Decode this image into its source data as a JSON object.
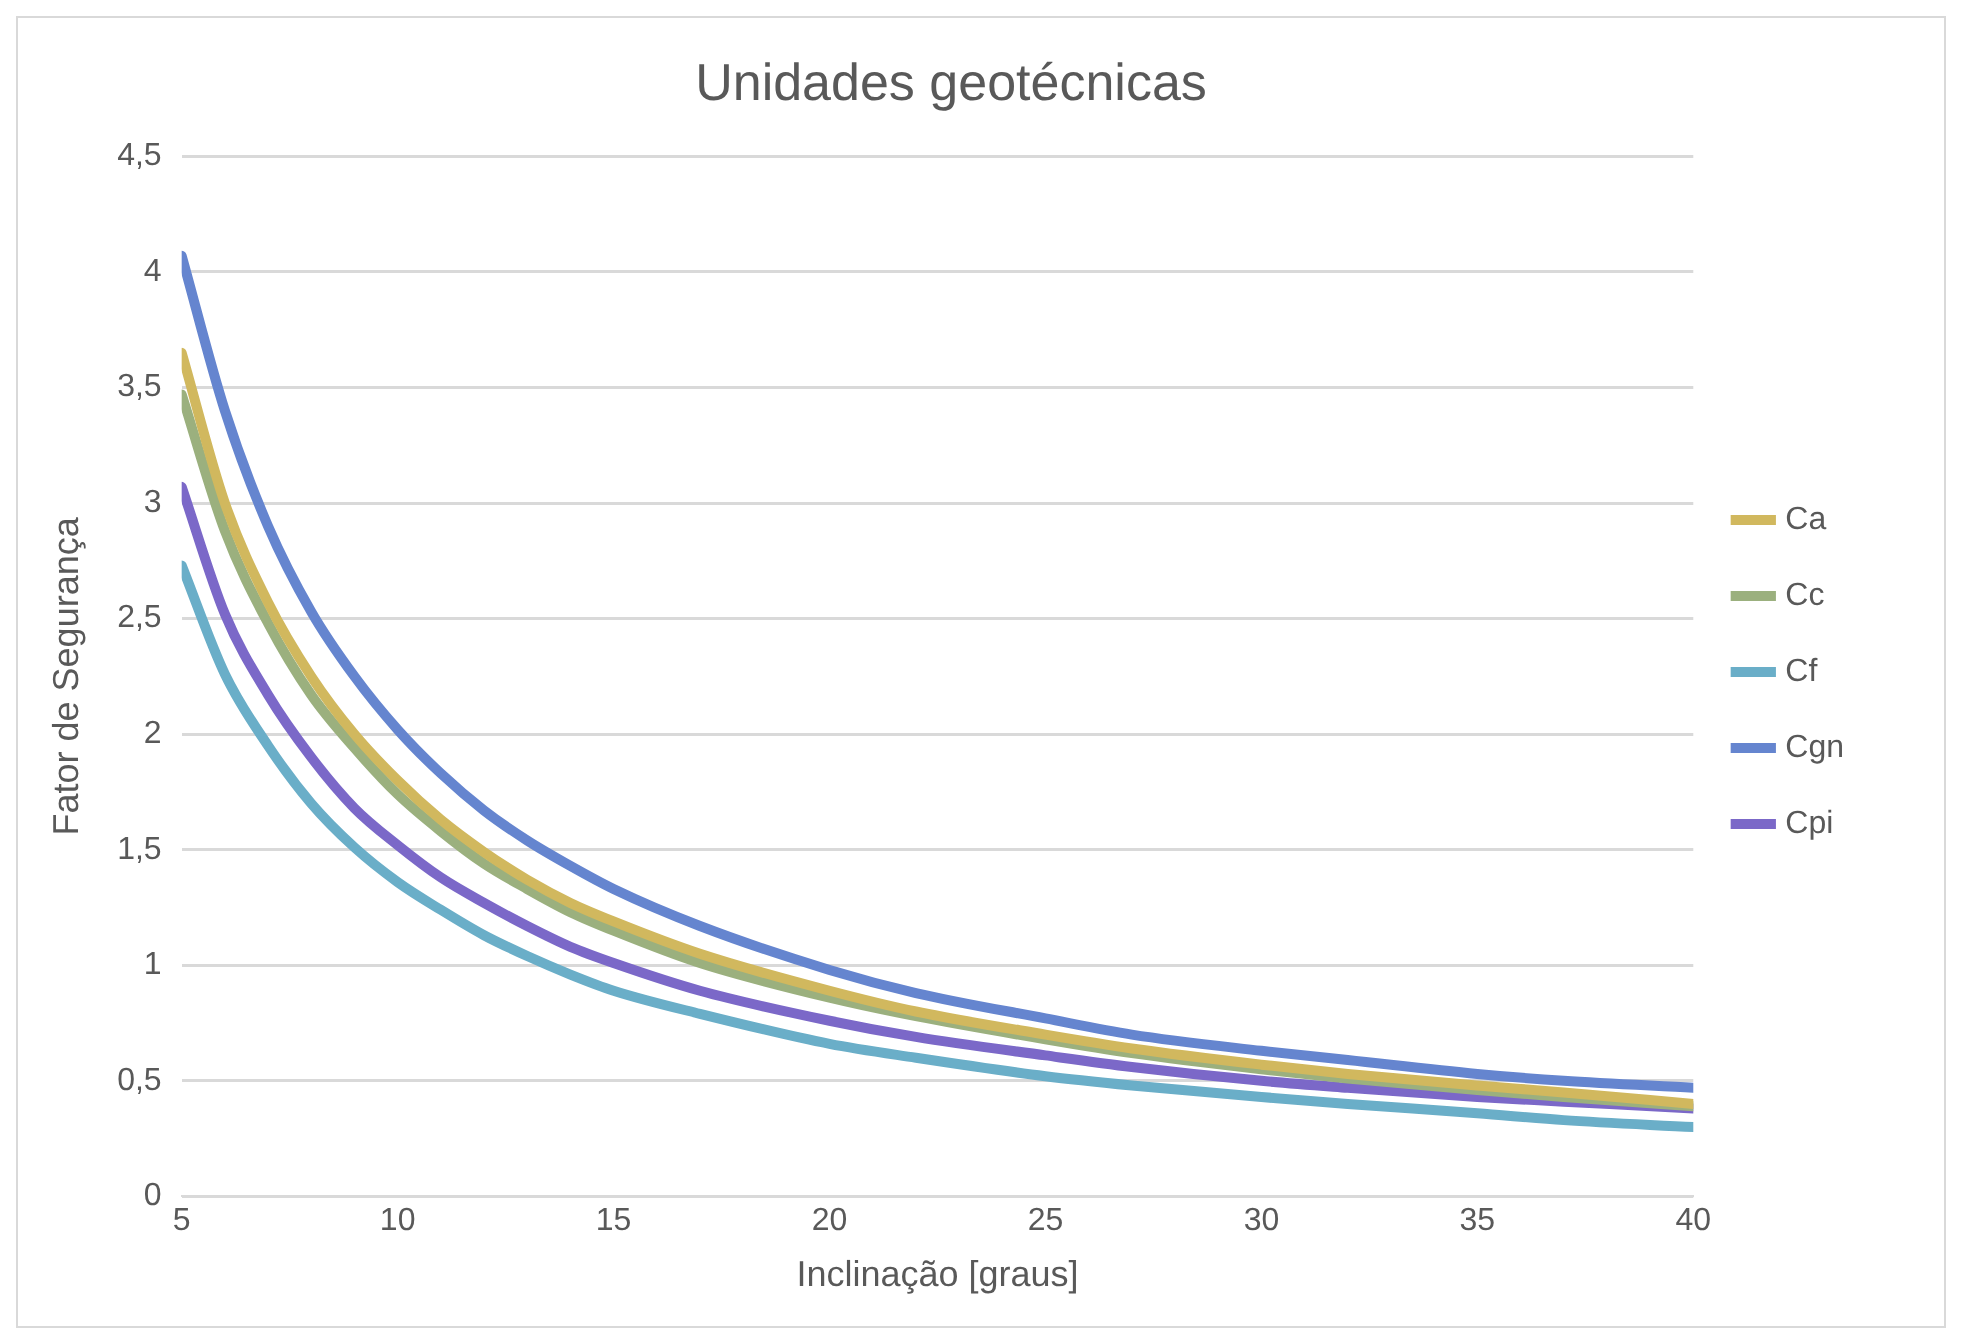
{
  "chart_data": {
    "type": "line",
    "title": "Unidades geotécnicas",
    "xlabel": "Inclinação [graus]",
    "ylabel": "Fator de Segurança",
    "x": [
      5,
      6,
      7,
      8,
      9,
      10,
      11,
      12,
      13,
      14,
      15,
      17,
      20,
      22,
      25,
      27,
      30,
      32,
      35,
      37,
      40
    ],
    "series": [
      {
        "name": "Ca",
        "color": "#d1b85e",
        "values": [
          3.65,
          3.0,
          2.57,
          2.25,
          2.0,
          1.8,
          1.63,
          1.49,
          1.37,
          1.27,
          1.19,
          1.05,
          0.89,
          0.8,
          0.7,
          0.64,
          0.57,
          0.53,
          0.48,
          0.45,
          0.4
        ]
      },
      {
        "name": "Cc",
        "color": "#9bb07e",
        "values": [
          3.47,
          2.88,
          2.48,
          2.17,
          1.94,
          1.74,
          1.58,
          1.44,
          1.33,
          1.23,
          1.15,
          1.01,
          0.86,
          0.78,
          0.68,
          0.62,
          0.55,
          0.51,
          0.46,
          0.43,
          0.39
        ]
      },
      {
        "name": "Cf",
        "color": "#6aaec8",
        "values": [
          2.73,
          2.26,
          1.95,
          1.7,
          1.51,
          1.36,
          1.24,
          1.13,
          1.04,
          0.96,
          0.89,
          0.79,
          0.66,
          0.6,
          0.52,
          0.48,
          0.43,
          0.4,
          0.36,
          0.33,
          0.3
        ]
      },
      {
        "name": "Cgn",
        "color": "#6585cf",
        "values": [
          4.07,
          3.4,
          2.9,
          2.53,
          2.25,
          2.02,
          1.83,
          1.67,
          1.54,
          1.43,
          1.33,
          1.17,
          0.98,
          0.88,
          0.77,
          0.7,
          0.63,
          0.59,
          0.53,
          0.5,
          0.47
        ]
      },
      {
        "name": "Cpi",
        "color": "#7b68c8",
        "values": [
          3.07,
          2.52,
          2.17,
          1.9,
          1.68,
          1.52,
          1.38,
          1.27,
          1.17,
          1.08,
          1.01,
          0.89,
          0.76,
          0.69,
          0.61,
          0.56,
          0.5,
          0.47,
          0.43,
          0.41,
          0.38
        ]
      }
    ],
    "xlim": [
      5,
      40
    ],
    "xticks": [
      5,
      10,
      15,
      20,
      25,
      30,
      35,
      40
    ],
    "ylim": [
      0,
      4.5
    ],
    "yticks": [
      {
        "value": 0,
        "label": "0"
      },
      {
        "value": 0.5,
        "label": "0,5"
      },
      {
        "value": 1,
        "label": "1"
      },
      {
        "value": 1.5,
        "label": "1,5"
      },
      {
        "value": 2,
        "label": "2"
      },
      {
        "value": 2.5,
        "label": "2,5"
      },
      {
        "value": 3,
        "label": "3"
      },
      {
        "value": 3.5,
        "label": "3,5"
      },
      {
        "value": 4,
        "label": "4"
      },
      {
        "value": 4.5,
        "label": "4,5"
      }
    ],
    "grid": "y",
    "legend": "right",
    "marker": "none",
    "line_style": "solid"
  }
}
